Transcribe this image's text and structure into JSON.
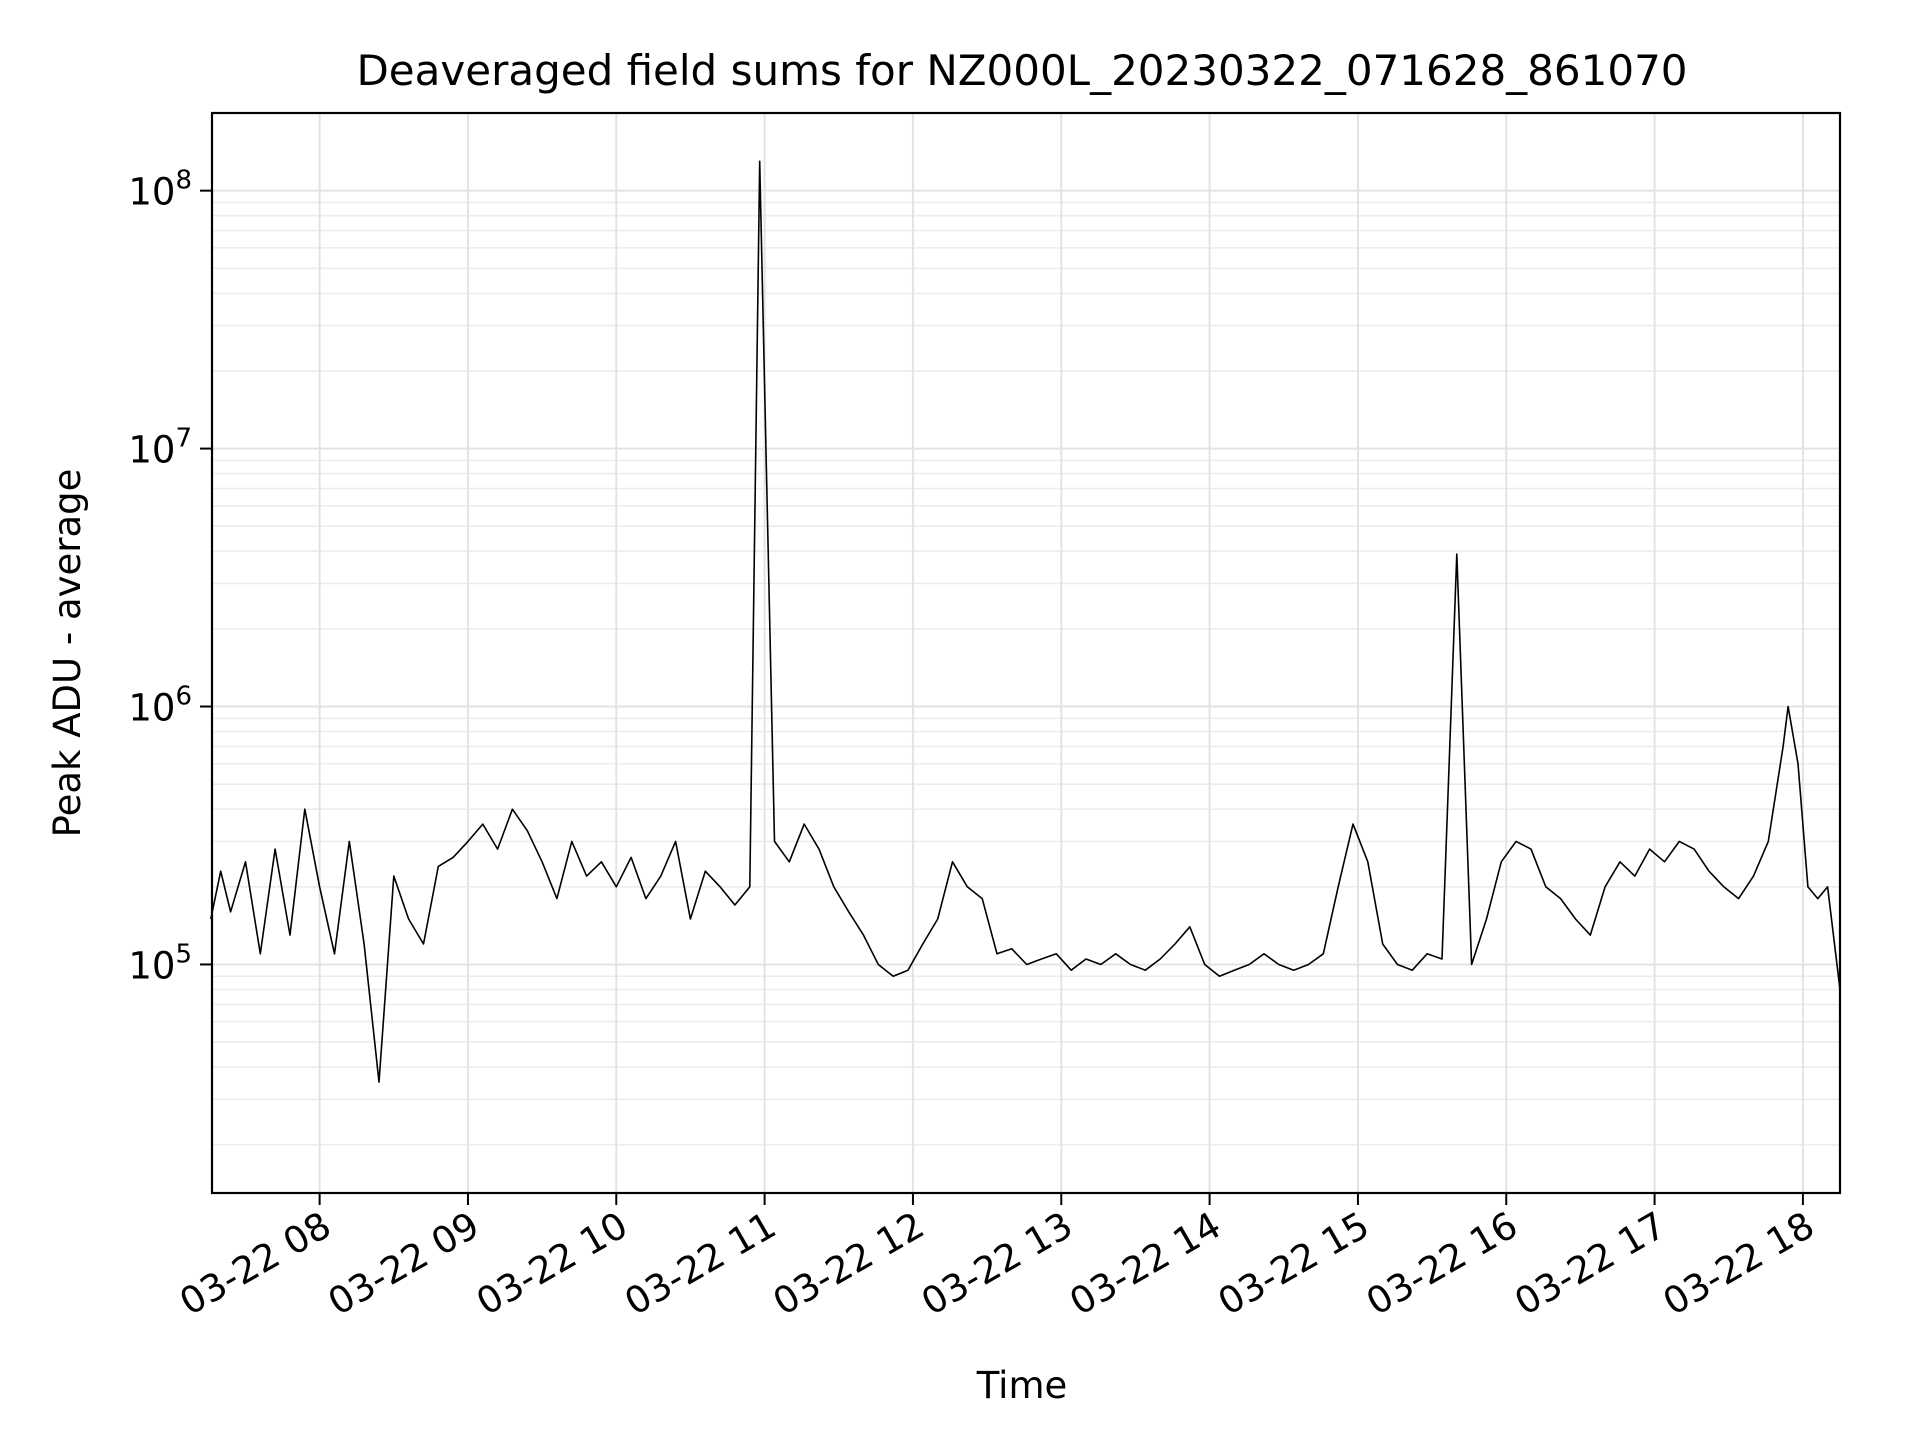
{
  "chart_data": {
    "type": "line",
    "title": "Deaveraged field sums for NZ000L_20230322_071628_861070",
    "xlabel": "Time",
    "ylabel": "Peak ADU - average",
    "xscale": "time",
    "yscale": "log",
    "xlim": [
      "2023-03-22 07:16:28",
      "2023-03-22 18:15:00"
    ],
    "ylim": [
      13000,
      200000000
    ],
    "grid": "on (major and minor)",
    "legend": "none",
    "line_color": "#000000",
    "x_ticks": [
      {
        "value": "2023-03-22 08:00",
        "label": "03-22 08"
      },
      {
        "value": "2023-03-22 09:00",
        "label": "03-22 09"
      },
      {
        "value": "2023-03-22 10:00",
        "label": "03-22 10"
      },
      {
        "value": "2023-03-22 11:00",
        "label": "03-22 11"
      },
      {
        "value": "2023-03-22 12:00",
        "label": "03-22 12"
      },
      {
        "value": "2023-03-22 13:00",
        "label": "03-22 13"
      },
      {
        "value": "2023-03-22 14:00",
        "label": "03-22 14"
      },
      {
        "value": "2023-03-22 15:00",
        "label": "03-22 15"
      },
      {
        "value": "2023-03-22 16:00",
        "label": "03-22 16"
      },
      {
        "value": "2023-03-22 17:00",
        "label": "03-22 17"
      },
      {
        "value": "2023-03-22 18:00",
        "label": "03-22 18"
      }
    ],
    "y_ticks": [
      {
        "value": 100000,
        "base": "10",
        "exp": "5"
      },
      {
        "value": 1000000,
        "base": "10",
        "exp": "6"
      },
      {
        "value": 10000000,
        "base": "10",
        "exp": "7"
      },
      {
        "value": 100000000,
        "base": "10",
        "exp": "8"
      }
    ],
    "series": [
      {
        "points": [
          [
            "2023-03-22 07:16",
            150000
          ],
          [
            "2023-03-22 07:20",
            230000
          ],
          [
            "2023-03-22 07:24",
            160000
          ],
          [
            "2023-03-22 07:30",
            250000
          ],
          [
            "2023-03-22 07:36",
            110000
          ],
          [
            "2023-03-22 07:42",
            280000
          ],
          [
            "2023-03-22 07:48",
            130000
          ],
          [
            "2023-03-22 07:54",
            400000
          ],
          [
            "2023-03-22 08:00",
            200000
          ],
          [
            "2023-03-22 08:06",
            110000
          ],
          [
            "2023-03-22 08:12",
            300000
          ],
          [
            "2023-03-22 08:18",
            120000
          ],
          [
            "2023-03-22 08:24",
            35000
          ],
          [
            "2023-03-22 08:30",
            220000
          ],
          [
            "2023-03-22 08:36",
            150000
          ],
          [
            "2023-03-22 08:42",
            120000
          ],
          [
            "2023-03-22 08:48",
            240000
          ],
          [
            "2023-03-22 08:54",
            260000
          ],
          [
            "2023-03-22 09:00",
            300000
          ],
          [
            "2023-03-22 09:06",
            350000
          ],
          [
            "2023-03-22 09:12",
            280000
          ],
          [
            "2023-03-22 09:18",
            400000
          ],
          [
            "2023-03-22 09:24",
            330000
          ],
          [
            "2023-03-22 09:30",
            250000
          ],
          [
            "2023-03-22 09:36",
            180000
          ],
          [
            "2023-03-22 09:42",
            300000
          ],
          [
            "2023-03-22 09:48",
            220000
          ],
          [
            "2023-03-22 09:54",
            250000
          ],
          [
            "2023-03-22 10:00",
            200000
          ],
          [
            "2023-03-22 10:06",
            260000
          ],
          [
            "2023-03-22 10:12",
            180000
          ],
          [
            "2023-03-22 10:18",
            220000
          ],
          [
            "2023-03-22 10:24",
            300000
          ],
          [
            "2023-03-22 10:30",
            150000
          ],
          [
            "2023-03-22 10:36",
            230000
          ],
          [
            "2023-03-22 10:42",
            200000
          ],
          [
            "2023-03-22 10:48",
            170000
          ],
          [
            "2023-03-22 10:54",
            200000
          ],
          [
            "2023-03-22 10:58",
            130000000
          ],
          [
            "2023-03-22 11:04",
            300000
          ],
          [
            "2023-03-22 11:10",
            250000
          ],
          [
            "2023-03-22 11:16",
            350000
          ],
          [
            "2023-03-22 11:22",
            280000
          ],
          [
            "2023-03-22 11:28",
            200000
          ],
          [
            "2023-03-22 11:34",
            160000
          ],
          [
            "2023-03-22 11:40",
            130000
          ],
          [
            "2023-03-22 11:46",
            100000
          ],
          [
            "2023-03-22 11:52",
            90000
          ],
          [
            "2023-03-22 11:58",
            95000
          ],
          [
            "2023-03-22 12:04",
            120000
          ],
          [
            "2023-03-22 12:10",
            150000
          ],
          [
            "2023-03-22 12:16",
            250000
          ],
          [
            "2023-03-22 12:22",
            200000
          ],
          [
            "2023-03-22 12:28",
            180000
          ],
          [
            "2023-03-22 12:34",
            110000
          ],
          [
            "2023-03-22 12:40",
            115000
          ],
          [
            "2023-03-22 12:46",
            100000
          ],
          [
            "2023-03-22 12:52",
            105000
          ],
          [
            "2023-03-22 12:58",
            110000
          ],
          [
            "2023-03-22 13:04",
            95000
          ],
          [
            "2023-03-22 13:10",
            105000
          ],
          [
            "2023-03-22 13:16",
            100000
          ],
          [
            "2023-03-22 13:22",
            110000
          ],
          [
            "2023-03-22 13:28",
            100000
          ],
          [
            "2023-03-22 13:34",
            95000
          ],
          [
            "2023-03-22 13:40",
            105000
          ],
          [
            "2023-03-22 13:46",
            120000
          ],
          [
            "2023-03-22 13:52",
            140000
          ],
          [
            "2023-03-22 13:58",
            100000
          ],
          [
            "2023-03-22 14:04",
            90000
          ],
          [
            "2023-03-22 14:10",
            95000
          ],
          [
            "2023-03-22 14:16",
            100000
          ],
          [
            "2023-03-22 14:22",
            110000
          ],
          [
            "2023-03-22 14:28",
            100000
          ],
          [
            "2023-03-22 14:34",
            95000
          ],
          [
            "2023-03-22 14:40",
            100000
          ],
          [
            "2023-03-22 14:46",
            110000
          ],
          [
            "2023-03-22 14:52",
            200000
          ],
          [
            "2023-03-22 14:58",
            350000
          ],
          [
            "2023-03-22 15:04",
            250000
          ],
          [
            "2023-03-22 15:10",
            120000
          ],
          [
            "2023-03-22 15:16",
            100000
          ],
          [
            "2023-03-22 15:22",
            95000
          ],
          [
            "2023-03-22 15:28",
            110000
          ],
          [
            "2023-03-22 15:34",
            105000
          ],
          [
            "2023-03-22 15:40",
            3900000
          ],
          [
            "2023-03-22 15:46",
            100000
          ],
          [
            "2023-03-22 15:52",
            150000
          ],
          [
            "2023-03-22 15:58",
            250000
          ],
          [
            "2023-03-22 16:04",
            300000
          ],
          [
            "2023-03-22 16:10",
            280000
          ],
          [
            "2023-03-22 16:16",
            200000
          ],
          [
            "2023-03-22 16:22",
            180000
          ],
          [
            "2023-03-22 16:28",
            150000
          ],
          [
            "2023-03-22 16:34",
            130000
          ],
          [
            "2023-03-22 16:40",
            200000
          ],
          [
            "2023-03-22 16:46",
            250000
          ],
          [
            "2023-03-22 16:52",
            220000
          ],
          [
            "2023-03-22 16:58",
            280000
          ],
          [
            "2023-03-22 17:04",
            250000
          ],
          [
            "2023-03-22 17:10",
            300000
          ],
          [
            "2023-03-22 17:16",
            280000
          ],
          [
            "2023-03-22 17:22",
            230000
          ],
          [
            "2023-03-22 17:28",
            200000
          ],
          [
            "2023-03-22 17:34",
            180000
          ],
          [
            "2023-03-22 17:40",
            220000
          ],
          [
            "2023-03-22 17:46",
            300000
          ],
          [
            "2023-03-22 17:52",
            700000
          ],
          [
            "2023-03-22 17:54",
            1000000
          ],
          [
            "2023-03-22 17:58",
            600000
          ],
          [
            "2023-03-22 18:02",
            200000
          ],
          [
            "2023-03-22 18:06",
            180000
          ],
          [
            "2023-03-22 18:10",
            200000
          ],
          [
            "2023-03-22 18:15",
            80000
          ]
        ]
      }
    ]
  }
}
